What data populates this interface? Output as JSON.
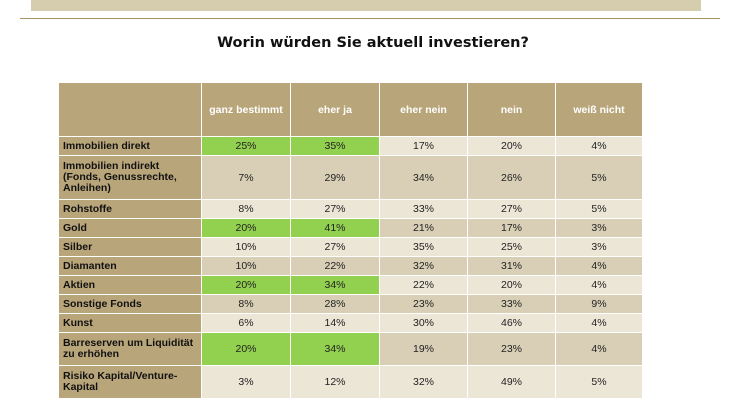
{
  "title": "Worin würden Sie aktuell investieren?",
  "colors": {
    "header_bg": "#b9a57a",
    "highlight": "#92d050",
    "row_light": "#ece6d6",
    "row_dark": "#d8cfb6"
  },
  "chart_data": {
    "type": "table",
    "title": "Worin würden Sie aktuell investieren?",
    "columns": [
      "ganz bestimmt",
      "eher ja",
      "eher nein",
      "nein",
      "weiß nicht"
    ],
    "rows": [
      {
        "label": "Immobilien direkt",
        "values": [
          "25%",
          "35%",
          "17%",
          "20%",
          "4%"
        ],
        "highlight": [
          0,
          1
        ]
      },
      {
        "label": "Immobilien indirekt (Fonds, Genussrechte, Anleihen)",
        "values": [
          "7%",
          "29%",
          "34%",
          "26%",
          "5%"
        ],
        "highlight": []
      },
      {
        "label": "Rohstoffe",
        "values": [
          "8%",
          "27%",
          "33%",
          "27%",
          "5%"
        ],
        "highlight": []
      },
      {
        "label": "Gold",
        "values": [
          "20%",
          "41%",
          "21%",
          "17%",
          "3%"
        ],
        "highlight": [
          0,
          1
        ]
      },
      {
        "label": "Silber",
        "values": [
          "10%",
          "27%",
          "35%",
          "25%",
          "3%"
        ],
        "highlight": []
      },
      {
        "label": "Diamanten",
        "values": [
          "10%",
          "22%",
          "32%",
          "31%",
          "4%"
        ],
        "highlight": []
      },
      {
        "label": "Aktien",
        "values": [
          "20%",
          "34%",
          "22%",
          "20%",
          "4%"
        ],
        "highlight": [
          0,
          1
        ]
      },
      {
        "label": "Sonstige Fonds",
        "values": [
          "8%",
          "28%",
          "23%",
          "33%",
          "9%"
        ],
        "highlight": []
      },
      {
        "label": "Kunst",
        "values": [
          "6%",
          "14%",
          "30%",
          "46%",
          "4%"
        ],
        "highlight": []
      },
      {
        "label": "Barreserven um Liquidität zu erhöhen",
        "values": [
          "20%",
          "34%",
          "19%",
          "23%",
          "4%"
        ],
        "highlight": [
          0,
          1
        ]
      },
      {
        "label": "Risiko Kapital/Venture-Kapital",
        "values": [
          "3%",
          "12%",
          "32%",
          "49%",
          "5%"
        ],
        "highlight": []
      }
    ]
  }
}
